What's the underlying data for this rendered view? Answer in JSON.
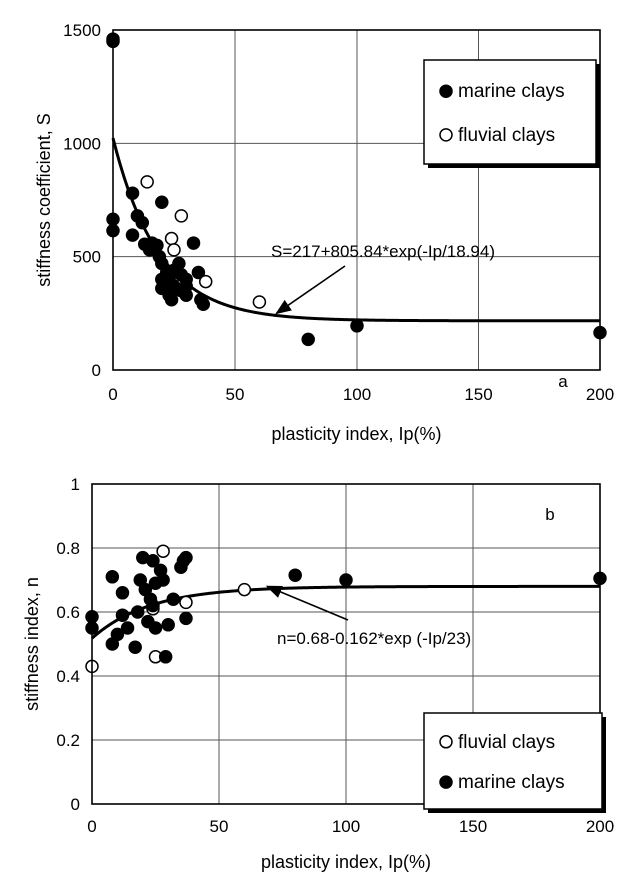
{
  "chart_data": [
    {
      "type": "scatter",
      "panel_label": "a",
      "xlabel": "plasticity index, Ip(%)",
      "ylabel": "stiffness coefficient, S",
      "x_ticks": [
        0,
        50,
        100,
        150,
        200
      ],
      "y_ticks": [
        0,
        500,
        1000,
        1500
      ],
      "xlim": [
        0,
        200
      ],
      "ylim": [
        0,
        1500
      ],
      "grid": true,
      "legend_position": "top-right",
      "series": [
        {
          "name": "marine clays",
          "marker": "filled-circle",
          "points": [
            [
              0,
              1460
            ],
            [
              0,
              1450
            ],
            [
              0,
              665
            ],
            [
              0,
              615
            ],
            [
              8,
              780
            ],
            [
              8,
              595
            ],
            [
              10,
              680
            ],
            [
              12,
              650
            ],
            [
              13,
              555
            ],
            [
              15,
              530
            ],
            [
              16,
              560
            ],
            [
              18,
              550
            ],
            [
              19,
              500
            ],
            [
              20,
              740
            ],
            [
              20,
              470
            ],
            [
              20,
              400
            ],
            [
              20,
              360
            ],
            [
              22,
              430
            ],
            [
              23,
              400
            ],
            [
              23,
              330
            ],
            [
              24,
              310
            ],
            [
              25,
              440
            ],
            [
              25,
              370
            ],
            [
              27,
              470
            ],
            [
              28,
              420
            ],
            [
              28,
              350
            ],
            [
              30,
              370
            ],
            [
              30,
              400
            ],
            [
              30,
              330
            ],
            [
              33,
              560
            ],
            [
              35,
              430
            ],
            [
              36,
              310
            ],
            [
              37,
              290
            ],
            [
              80,
              135
            ],
            [
              100,
              195
            ],
            [
              200,
              165
            ]
          ]
        },
        {
          "name": "fluvial clays",
          "marker": "open-circle",
          "points": [
            [
              14,
              830
            ],
            [
              24,
              580
            ],
            [
              25,
              530
            ],
            [
              28,
              680
            ],
            [
              38,
              390
            ],
            [
              60,
              300
            ]
          ]
        }
      ],
      "fit": {
        "label": "S=217+805.84*exp(-Ip/18.94)",
        "a": 217,
        "b": 805.84,
        "c": 18.94,
        "form": "a+b*exp(-x/c)",
        "arrow_to": [
          67,
          250
        ]
      }
    },
    {
      "type": "scatter",
      "panel_label": "b",
      "xlabel": "plasticity index, Ip(%)",
      "ylabel": "stiffness index, n",
      "x_ticks": [
        0,
        50,
        100,
        150,
        200
      ],
      "y_ticks": [
        0,
        0.2,
        0.4,
        0.6,
        0.8,
        1
      ],
      "xlim": [
        0,
        200
      ],
      "ylim": [
        0,
        1
      ],
      "grid": true,
      "legend_position": "bottom-right",
      "series": [
        {
          "name": "fluvial clays",
          "marker": "open-circle",
          "points": [
            [
              0,
              0.43
            ],
            [
              24,
              0.61
            ],
            [
              25,
              0.46
            ],
            [
              28,
              0.79
            ],
            [
              37,
              0.63
            ],
            [
              60,
              0.67
            ]
          ]
        },
        {
          "name": "marine clays",
          "marker": "filled-circle",
          "points": [
            [
              0,
              0.585
            ],
            [
              0,
              0.55
            ],
            [
              8,
              0.71
            ],
            [
              8,
              0.5
            ],
            [
              10,
              0.53
            ],
            [
              12,
              0.59
            ],
            [
              12,
              0.66
            ],
            [
              14,
              0.55
            ],
            [
              17,
              0.49
            ],
            [
              18,
              0.6
            ],
            [
              19,
              0.7
            ],
            [
              20,
              0.77
            ],
            [
              21,
              0.67
            ],
            [
              22,
              0.57
            ],
            [
              23,
              0.64
            ],
            [
              24,
              0.76
            ],
            [
              24,
              0.62
            ],
            [
              25,
              0.69
            ],
            [
              25,
              0.55
            ],
            [
              27,
              0.73
            ],
            [
              28,
              0.7
            ],
            [
              29,
              0.46
            ],
            [
              30,
              0.56
            ],
            [
              32,
              0.64
            ],
            [
              35,
              0.74
            ],
            [
              36,
              0.76
            ],
            [
              37,
              0.77
            ],
            [
              37,
              0.58
            ],
            [
              80,
              0.715
            ],
            [
              100,
              0.7
            ],
            [
              200,
              0.705
            ]
          ]
        }
      ],
      "fit": {
        "label": "n=0.68-0.162*exp (-Ip/23)",
        "a": 0.68,
        "b": -0.162,
        "c": 23,
        "form": "a+b*exp(-x/c)",
        "arrow_to": [
          69,
          0.68
        ]
      }
    }
  ]
}
